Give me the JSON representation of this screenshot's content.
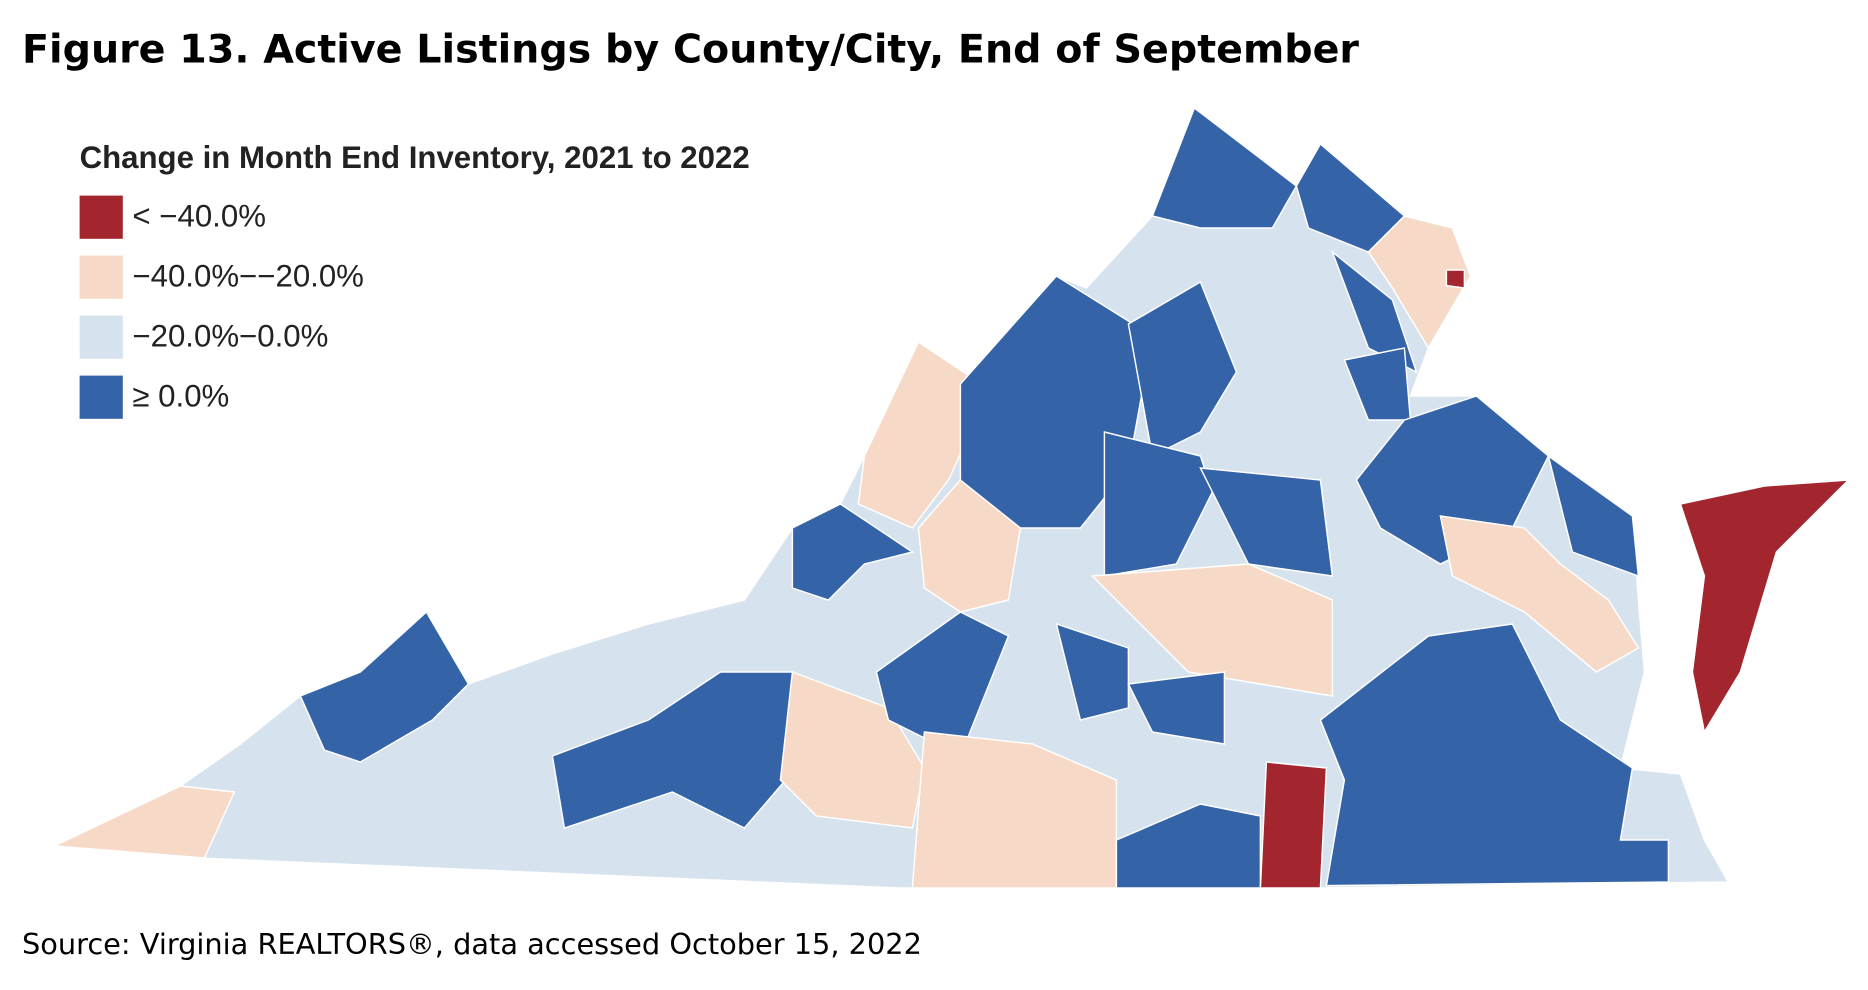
{
  "title": "Figure 13. Active Listings by County/City, End of September",
  "legend": {
    "title": "Change in Month End Inventory, 2021 to 2022",
    "items": [
      {
        "label": "< −40.0%",
        "color": "#a3262e"
      },
      {
        "label": "−40.0%−−20.0%",
        "color": "#f6dac7"
      },
      {
        "label": "−20.0%−0.0%",
        "color": "#d6e3ef"
      },
      {
        "label": "≥ 0.0%",
        "color": "#3563a8"
      }
    ]
  },
  "source": "Source: Virginia REALTORS®, data accessed October 15, 2022"
}
